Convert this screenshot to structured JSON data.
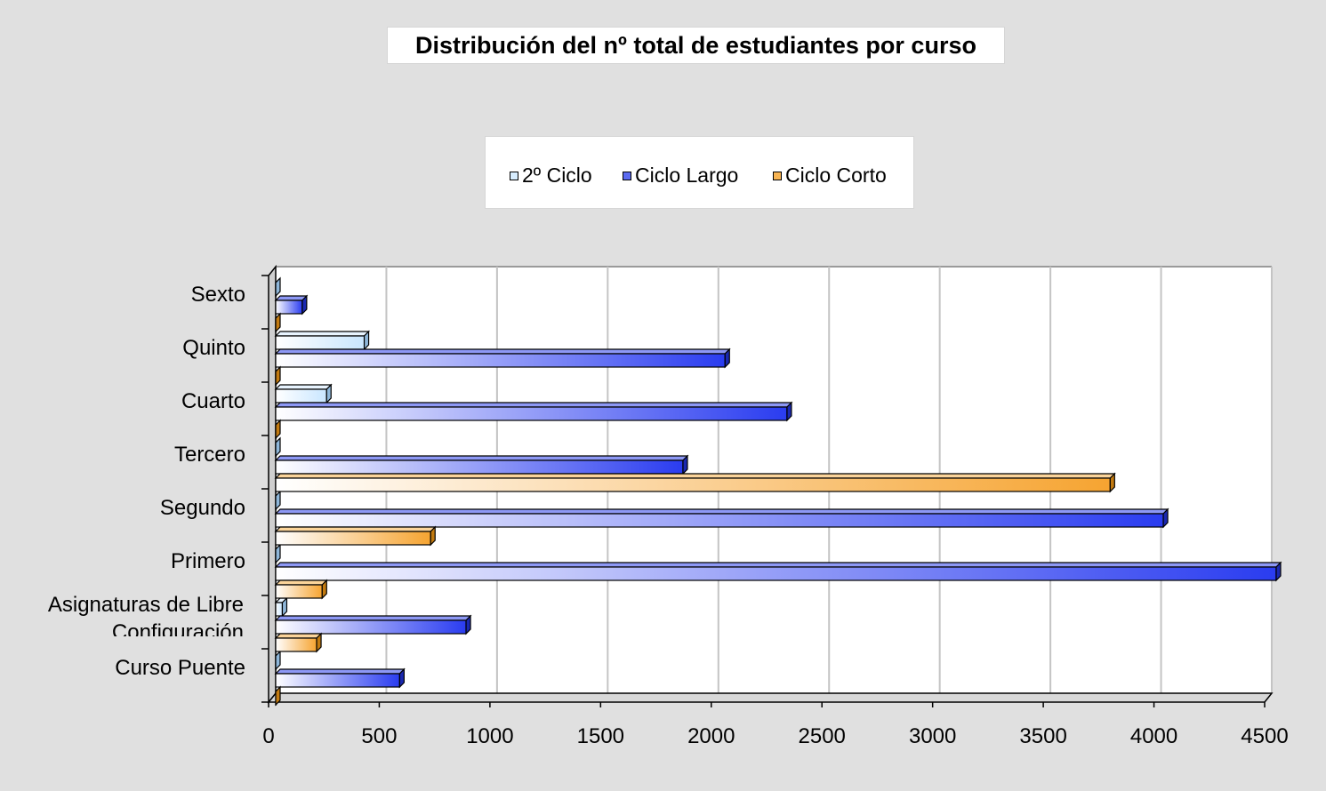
{
  "chart_data": {
    "type": "bar",
    "orientation": "horizontal",
    "title": "Distribución del nº total de estudiantes por curso",
    "categories": [
      "Sexto",
      "Quinto",
      "Cuarto",
      "Tercero",
      "Segundo",
      "Primero",
      "Asignaturas de Libre Configuración",
      "Curso Puente"
    ],
    "category_lines": [
      [
        "Sexto"
      ],
      [
        "Quinto"
      ],
      [
        "Cuarto"
      ],
      [
        "Tercero"
      ],
      [
        "Segundo"
      ],
      [
        "Primero"
      ],
      [
        "Asignaturas de Libre",
        "Configuración"
      ],
      [
        "Curso Puente"
      ]
    ],
    "series": [
      {
        "name": "2º Ciclo",
        "color": "#c9e6ff",
        "values": [
          0,
          400,
          230,
          0,
          0,
          0,
          30,
          0
        ]
      },
      {
        "name": "Ciclo Largo",
        "color": "#2a3cf0",
        "values": [
          120,
          2030,
          2310,
          1840,
          4010,
          4520,
          860,
          560
        ]
      },
      {
        "name": "Ciclo Corto",
        "color": "#f6a431",
        "values": [
          0,
          0,
          0,
          3770,
          700,
          210,
          185,
          0
        ]
      }
    ],
    "x_ticks": [
      0,
      500,
      1000,
      1500,
      2000,
      2500,
      3000,
      3500,
      4000,
      4500
    ],
    "xlim": [
      0,
      4500
    ],
    "grid": true,
    "legend_position": "top"
  }
}
